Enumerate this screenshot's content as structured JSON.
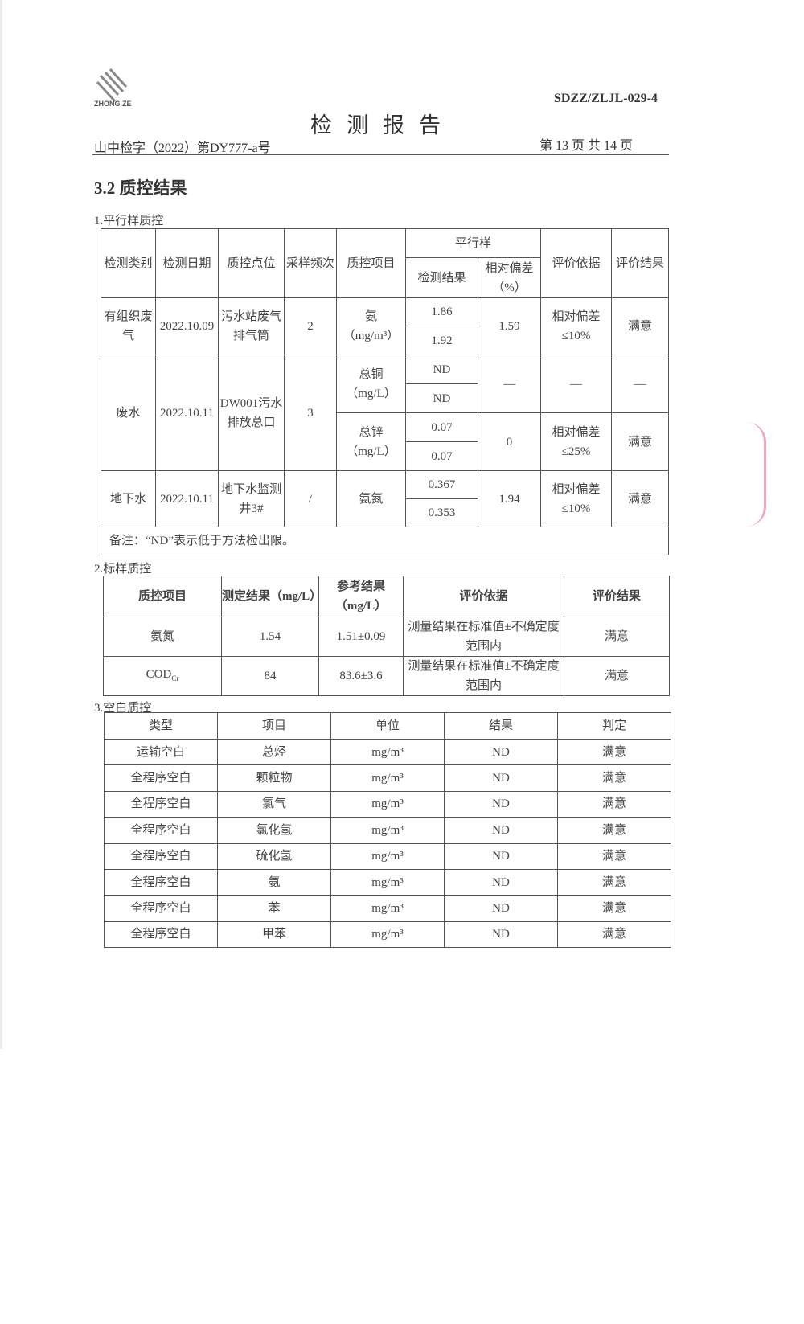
{
  "header": {
    "logo_text": "ZHONG ZE",
    "form_code": "SDZZ/ZLJL-029-4",
    "title": "检测报告",
    "report_no": "山中检字（2022）第DY777-a号",
    "page_info": "第 13 页  共 14 页"
  },
  "section_title": "3.2  质控结果",
  "parallel": {
    "caption": "1.平行样质控",
    "headers": {
      "category": "检测类别",
      "date": "检测日期",
      "point": "质控点位",
      "freq": "采样频次",
      "item": "质控项目",
      "parallel": "平行样",
      "result": "检测结果",
      "rel_dev": "相对偏差（%）",
      "basis": "评价依据",
      "eval": "评价结果"
    },
    "rows": [
      {
        "category": "有组织废气",
        "date": "2022.10.09",
        "point": "污水站废气排气筒",
        "freq": "2",
        "item": "氨",
        "unit": "（mg/m³）",
        "r1": "1.86",
        "r2": "1.92",
        "dev": "1.59",
        "basis": "相对偏差≤10%",
        "eval": "满意"
      },
      {
        "category": "废水",
        "date": "2022.10.11",
        "point": "DW001污水排放总口",
        "freq": "3",
        "item": "总铜",
        "unit": "（mg/L）",
        "r1": "ND",
        "r2": "ND",
        "dev": "—",
        "basis": "—",
        "eval": "—",
        "item2": "总锌",
        "unit2": "（mg/L）",
        "r3": "0.07",
        "r4": "0.07",
        "dev2": "0",
        "basis2": "相对偏差≤25%",
        "eval2": "满意"
      },
      {
        "category": "地下水",
        "date": "2022.10.11",
        "point": "地下水监测井3#",
        "freq": "/",
        "item": "氨氮",
        "r1": "0.367",
        "r2": "0.353",
        "dev": "1.94",
        "basis": "相对偏差≤10%",
        "eval": "满意"
      }
    ],
    "note": "备注：“ND”表示低于方法检出限。"
  },
  "standard": {
    "caption": "2.标样质控",
    "headers": [
      "质控项目",
      "测定结果（mg/L）",
      "参考结果（mg/L）",
      "评价依据",
      "评价结果"
    ],
    "rows": [
      [
        "氨氮",
        "1.54",
        "1.51±0.09",
        "测量结果在标准值±不确定度范围内",
        "满意"
      ],
      [
        "CODCr",
        "84",
        "83.6±3.6",
        "测量结果在标准值±不确定度范围内",
        "满意"
      ]
    ]
  },
  "blank": {
    "caption": "3.空白质控",
    "headers": [
      "类型",
      "项目",
      "单位",
      "结果",
      "判定"
    ],
    "rows": [
      [
        "运输空白",
        "总烃",
        "mg/m³",
        "ND",
        "满意"
      ],
      [
        "全程序空白",
        "颗粒物",
        "mg/m³",
        "ND",
        "满意"
      ],
      [
        "全程序空白",
        "氯气",
        "mg/m³",
        "ND",
        "满意"
      ],
      [
        "全程序空白",
        "氯化氢",
        "mg/m³",
        "ND",
        "满意"
      ],
      [
        "全程序空白",
        "硫化氢",
        "mg/m³",
        "ND",
        "满意"
      ],
      [
        "全程序空白",
        "氨",
        "mg/m³",
        "ND",
        "满意"
      ],
      [
        "全程序空白",
        "苯",
        "mg/m³",
        "ND",
        "满意"
      ],
      [
        "全程序空白",
        "甲苯",
        "mg/m³",
        "ND",
        "满意"
      ]
    ]
  }
}
